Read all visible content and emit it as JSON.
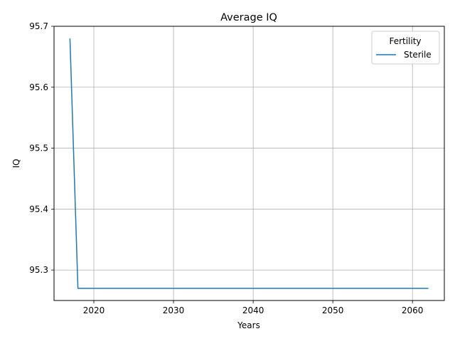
{
  "chart_data": {
    "type": "line",
    "title": "Average IQ",
    "xlabel": "Years",
    "ylabel": "IQ",
    "xlim": [
      2015,
      2064
    ],
    "ylim": [
      95.25,
      95.7
    ],
    "xticks": [
      2020,
      2030,
      2040,
      2050,
      2060
    ],
    "xtick_labels": [
      "2020",
      "2030",
      "2040",
      "2050",
      "2060"
    ],
    "yticks": [
      95.3,
      95.4,
      95.5,
      95.6,
      95.7
    ],
    "ytick_labels": [
      "95.3",
      "95.4",
      "95.5",
      "95.6",
      "95.7"
    ],
    "grid": true,
    "legend": {
      "title": "Fertility",
      "placement": "top-right"
    },
    "series": [
      {
        "name": "Sterile",
        "color": "#1f77b4",
        "x": [
          2017,
          2018,
          2019,
          2020,
          2021,
          2022,
          2023,
          2024,
          2025,
          2026,
          2027,
          2028,
          2029,
          2030,
          2031,
          2032,
          2033,
          2034,
          2035,
          2036,
          2037,
          2038,
          2039,
          2040,
          2041,
          2042,
          2043,
          2044,
          2045,
          2046,
          2047,
          2048,
          2049,
          2050,
          2051,
          2052,
          2053,
          2054,
          2055,
          2056,
          2057,
          2058,
          2059,
          2060,
          2061,
          2062
        ],
        "values": [
          95.68,
          95.27,
          95.27,
          95.27,
          95.27,
          95.27,
          95.27,
          95.27,
          95.27,
          95.27,
          95.27,
          95.27,
          95.27,
          95.27,
          95.27,
          95.27,
          95.27,
          95.27,
          95.27,
          95.27,
          95.27,
          95.27,
          95.27,
          95.27,
          95.27,
          95.27,
          95.27,
          95.27,
          95.27,
          95.27,
          95.27,
          95.27,
          95.27,
          95.27,
          95.27,
          95.27,
          95.27,
          95.27,
          95.27,
          95.27,
          95.27,
          95.27,
          95.27,
          95.27,
          95.27,
          95.27
        ]
      }
    ]
  }
}
